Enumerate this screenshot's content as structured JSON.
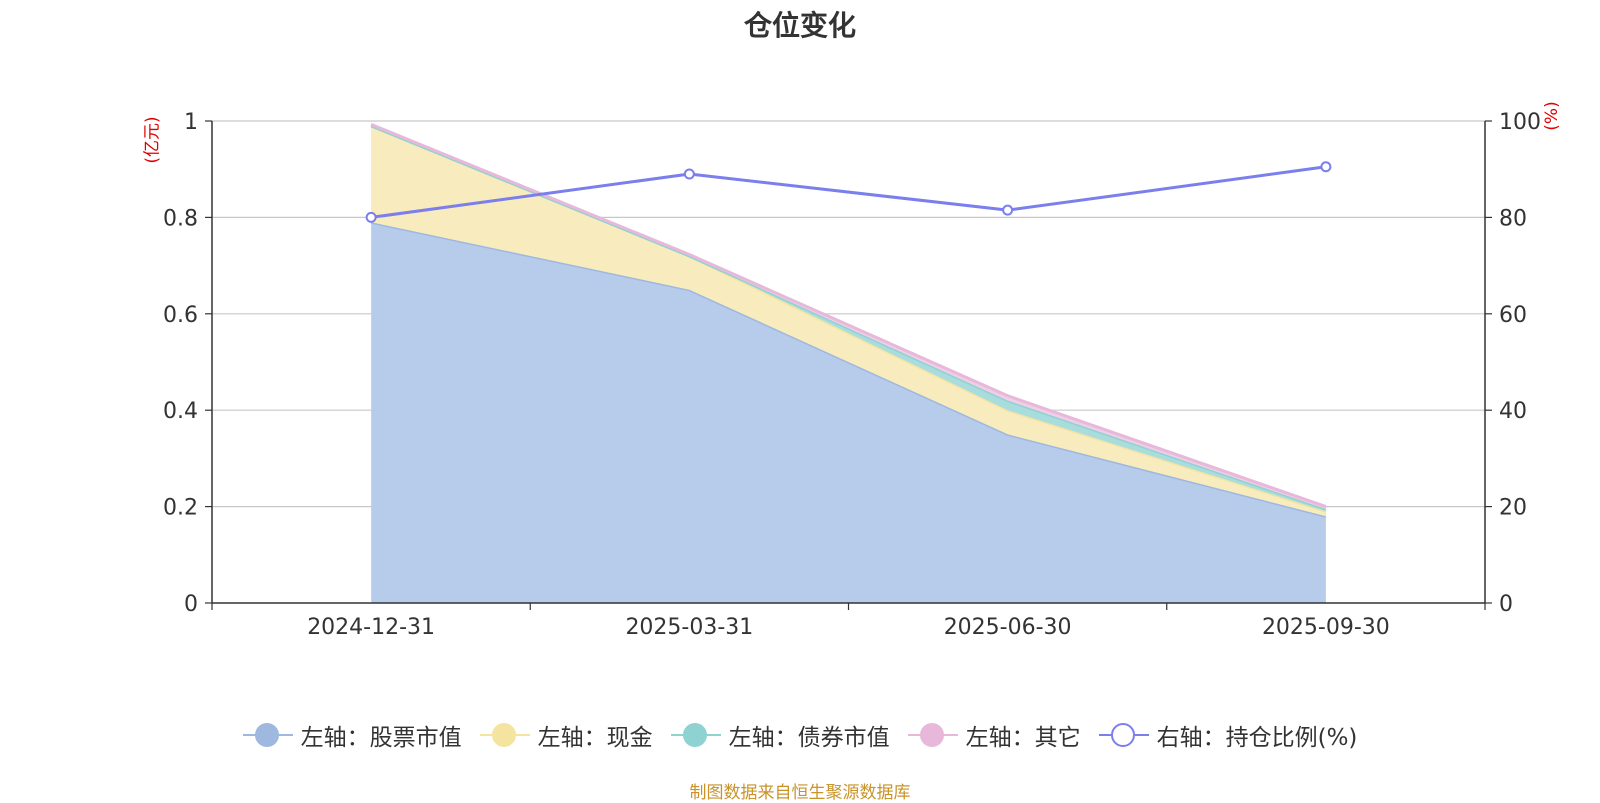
{
  "chart_data": {
    "type": "area",
    "title": "仓位变化",
    "categories": [
      "2024-12-31",
      "2025-03-31",
      "2025-06-30",
      "2025-09-30"
    ],
    "left_axis": {
      "unit": "(亿元)",
      "range": [
        0,
        1
      ],
      "ticks": [
        "0",
        "0.2",
        "0.4",
        "0.6",
        "0.8",
        "1"
      ]
    },
    "right_axis": {
      "unit": "(%)",
      "range": [
        0,
        100
      ],
      "ticks": [
        "0",
        "20",
        "40",
        "60",
        "80",
        "100"
      ]
    },
    "series": [
      {
        "name": "左轴：股票市值",
        "axis": "left",
        "stack": "total",
        "color": "#9eb8e0",
        "fill": "#b7cbea",
        "values": [
          0.79,
          0.65,
          0.35,
          0.18
        ]
      },
      {
        "name": "左轴：现金",
        "axis": "left",
        "stack": "total",
        "color": "#f5e4a0",
        "fill": "#f8ebbd",
        "values": [
          0.2,
          0.07,
          0.05,
          0.01
        ]
      },
      {
        "name": "左轴：债券市值",
        "axis": "left",
        "stack": "total",
        "color": "#8fd2d2",
        "fill": "#a9dcdc",
        "values": [
          0,
          0,
          0.02,
          0.005
        ]
      },
      {
        "name": "左轴：其它",
        "axis": "left",
        "stack": "total",
        "color": "#e8b8da",
        "fill": "#efcfe6",
        "values": [
          0.003,
          0.003,
          0.01,
          0.005
        ]
      },
      {
        "name": "右轴：持仓比例(%)",
        "axis": "right",
        "type": "line",
        "color": "#7b7fec",
        "values": [
          80,
          89,
          81.5,
          90.5
        ]
      }
    ],
    "grid": true,
    "legend_position": "bottom"
  },
  "source_note": "制图数据来自恒生聚源数据库"
}
